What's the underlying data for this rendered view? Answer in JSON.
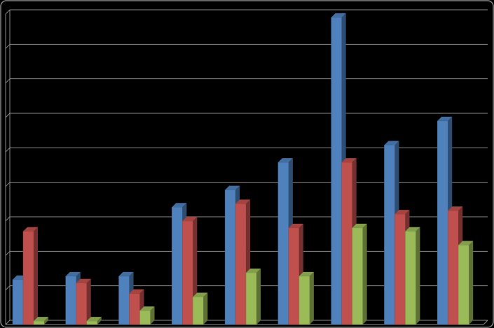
{
  "chart_data": {
    "type": "bar3d",
    "categories": [
      null,
      null,
      null,
      null,
      null,
      null,
      null,
      null,
      null
    ],
    "series": [
      {
        "color": "#4f81bd",
        "values": [
          1.3,
          1.4,
          1.4,
          3.4,
          3.9,
          4.7,
          8.9,
          5.2,
          5.9
        ]
      },
      {
        "color": "#c0504d",
        "values": [
          2.7,
          1.2,
          0.9,
          3.0,
          3.5,
          2.8,
          4.7,
          3.2,
          3.3
        ]
      },
      {
        "color": "#9bbb59",
        "values": [
          0.1,
          0.1,
          0.4,
          0.8,
          1.5,
          1.4,
          2.8,
          2.7,
          2.3
        ]
      }
    ],
    "ylim": [
      0,
      9
    ],
    "yticks": [
      0,
      1,
      2,
      3,
      4,
      5,
      6,
      7,
      8,
      9
    ],
    "grid": true
  }
}
